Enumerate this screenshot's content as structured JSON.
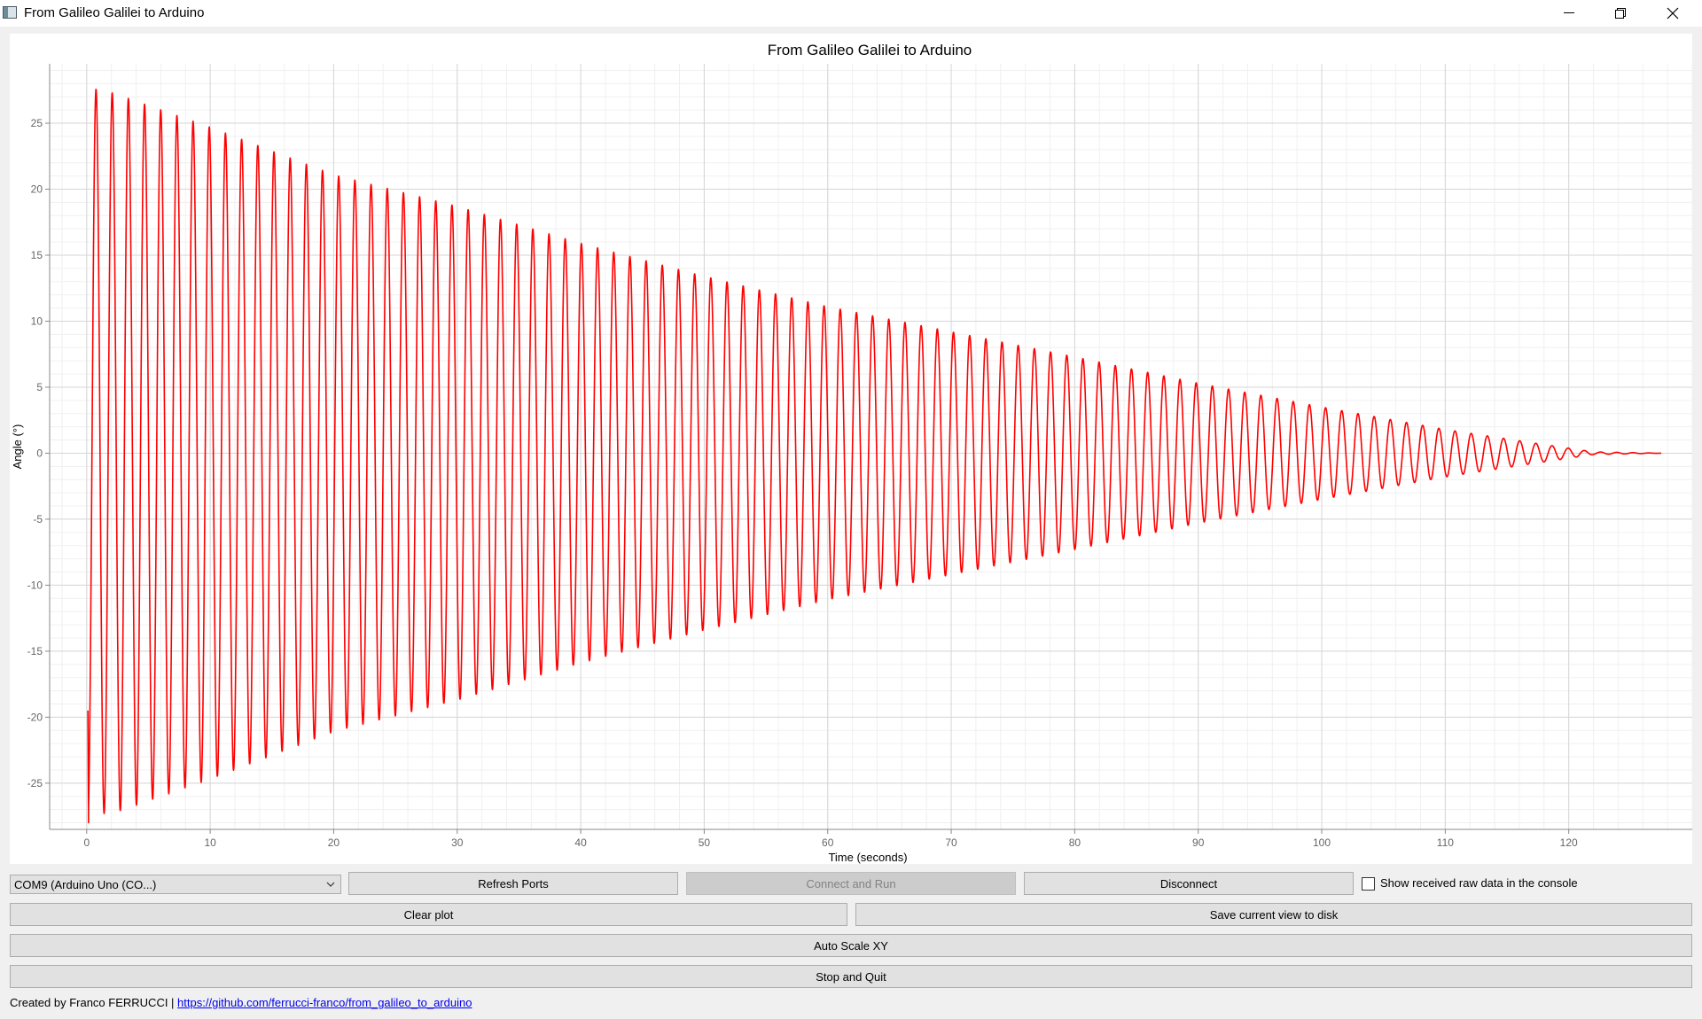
{
  "window": {
    "title": "From Galileo Galilei to Arduino",
    "icons": {
      "minimize": "minimize-icon",
      "restore": "restore-icon",
      "close": "close-icon"
    }
  },
  "chart_data": {
    "type": "line",
    "title": "From Galileo Galilei to Arduino",
    "xlabel": "Time (seconds)",
    "ylabel": "Angle (°)",
    "xlim": [
      -3,
      130
    ],
    "ylim": [
      -28.5,
      29.5
    ],
    "xticks": [
      0,
      10,
      20,
      30,
      40,
      50,
      60,
      70,
      80,
      90,
      100,
      110,
      120
    ],
    "yticks": [
      -25,
      -20,
      -15,
      -10,
      -5,
      0,
      5,
      10,
      15,
      20,
      25
    ],
    "grid": true,
    "line_color": "#ff0000",
    "series": [
      {
        "description": "damped oscillation sampled at peaks",
        "period_s": 1.31,
        "peaks": [
          {
            "t": 0.1,
            "angle": -28.0
          },
          {
            "t": 0.8,
            "angle": 27.7
          },
          {
            "t": 2.1,
            "angle": 27.3
          },
          {
            "t": 10.0,
            "angle": 24.7
          },
          {
            "t": 20.0,
            "angle": 21.1
          },
          {
            "t": 30.0,
            "angle": 18.7
          },
          {
            "t": 40.0,
            "angle": 15.9
          },
          {
            "t": 50.0,
            "angle": 13.4
          },
          {
            "t": 60.0,
            "angle": 11.1
          },
          {
            "t": 70.0,
            "angle": 9.2
          },
          {
            "t": 80.0,
            "angle": 7.3
          },
          {
            "t": 90.0,
            "angle": 5.3
          },
          {
            "t": 100.0,
            "angle": 3.5
          },
          {
            "t": 110.0,
            "angle": 1.8
          },
          {
            "t": 117.0,
            "angle": 0.8
          },
          {
            "t": 122.0,
            "angle": 0.1
          },
          {
            "t": 127.5,
            "angle": 0.0
          }
        ]
      }
    ]
  },
  "controls": {
    "port_select": {
      "value": "COM9 (Arduino Uno (CO...)",
      "icon": "chevron-down-icon"
    },
    "refresh_ports": "Refresh Ports",
    "connect_run": "Connect and Run",
    "disconnect": "Disconnect",
    "show_raw": {
      "label": "Show received raw data in the console",
      "checked": false
    },
    "clear_plot": "Clear plot",
    "save_view": "Save current view to disk",
    "auto_scale": "Auto Scale XY",
    "stop_quit": "Stop and Quit"
  },
  "footer": {
    "credit": "Created by Franco FERRUCCI | ",
    "link": "https://github.com/ferrucci-franco/from_galileo_to_arduino"
  }
}
